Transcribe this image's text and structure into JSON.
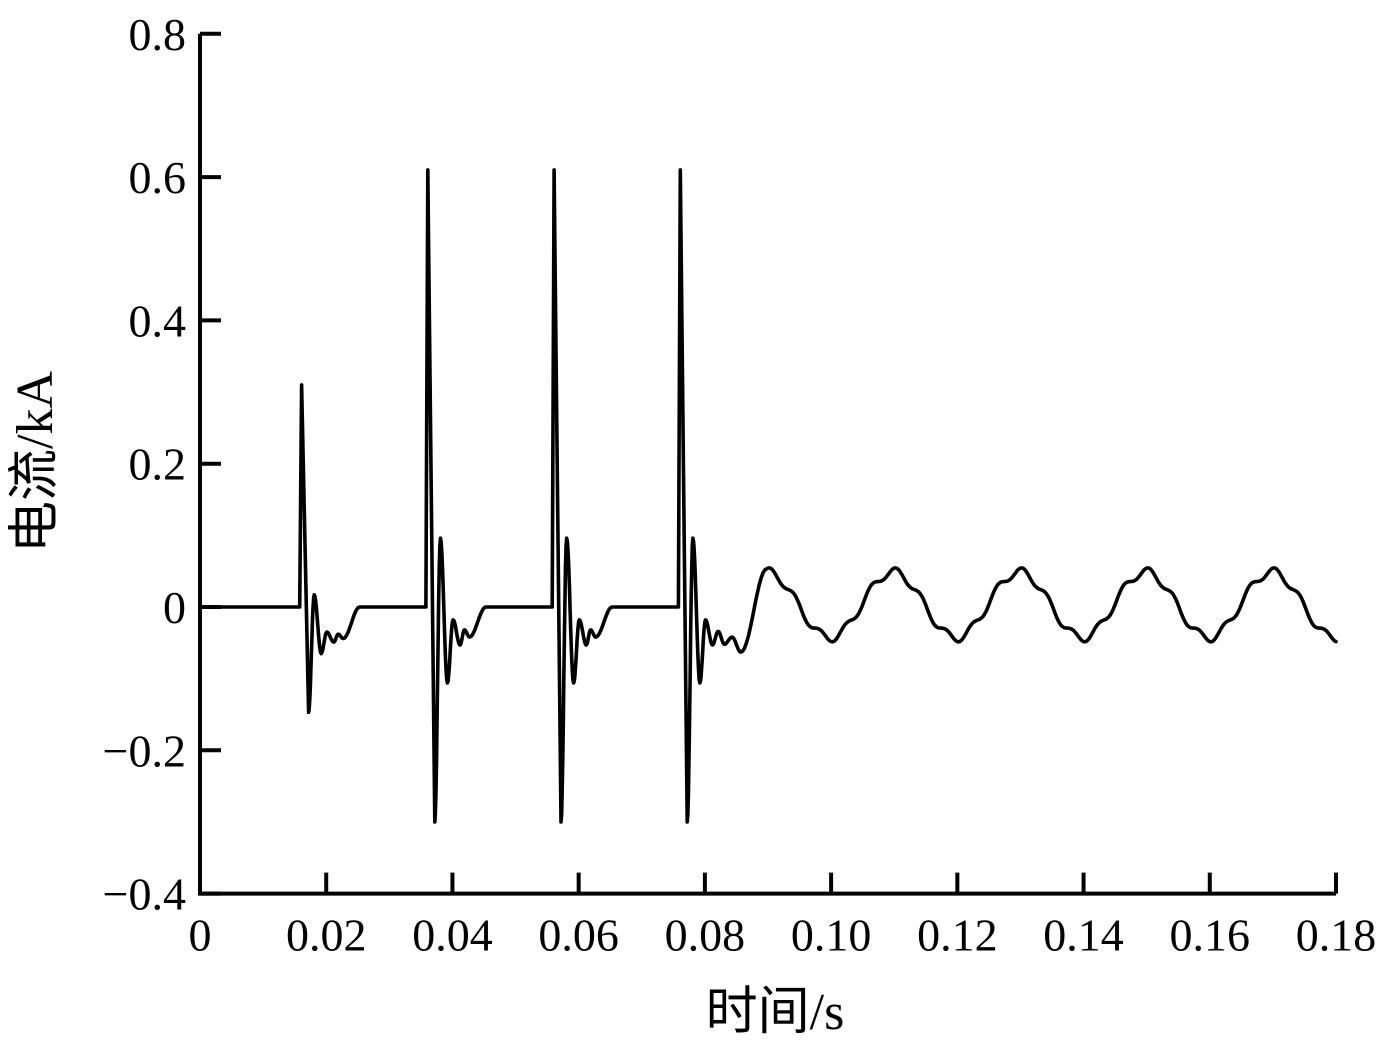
{
  "figure": {
    "background": "#ffffff",
    "ink_color": "#000000"
  },
  "chart_data": {
    "type": "line",
    "title": "",
    "xlabel": "时间/s",
    "ylabel": "电流/kA",
    "xlim": [
      0,
      0.18
    ],
    "ylim": [
      -0.4,
      0.8
    ],
    "grid": false,
    "legend": null,
    "line_color": "#000000",
    "xticks": [
      0,
      0.02,
      0.04,
      0.06,
      0.08,
      0.1,
      0.12,
      0.14,
      0.16,
      0.18
    ],
    "xtick_labels": [
      "0",
      "0.02",
      "0.04",
      "0.06",
      "0.08",
      "0.10",
      "0.12",
      "0.14",
      "0.16",
      "0.18"
    ],
    "yticks": [
      0.8,
      0.6,
      0.4,
      0.2,
      0,
      -0.2,
      -0.4
    ],
    "ytick_labels": [
      "0.8",
      "0.6",
      "0.4",
      "0.2",
      "0",
      "−0.2",
      "−0.4"
    ],
    "baseline_kA": 0,
    "pulses": [
      {
        "onset_s": 0.0158,
        "peak_kA": 0.31,
        "min_kA": -0.147,
        "keypoints": [
          [
            0,
            0
          ],
          [
            0.0003,
            0.31
          ],
          [
            0.0014,
            -0.147
          ],
          [
            0.0023,
            0.017
          ],
          [
            0.0034,
            -0.065
          ],
          [
            0.0043,
            -0.035
          ],
          [
            0.0054,
            -0.049
          ],
          [
            0.0061,
            -0.038
          ],
          [
            0.0069,
            -0.044
          ],
          [
            0.0095,
            0
          ]
        ]
      },
      {
        "onset_s": 0.0358,
        "peak_kA": 0.61,
        "min_kA": -0.3,
        "keypoints": [
          [
            0,
            0
          ],
          [
            0.0003,
            0.61
          ],
          [
            0.0014,
            -0.3
          ],
          [
            0.0023,
            0.096
          ],
          [
            0.0034,
            -0.106
          ],
          [
            0.0043,
            -0.018
          ],
          [
            0.0054,
            -0.053
          ],
          [
            0.0061,
            -0.032
          ],
          [
            0.0069,
            -0.042
          ],
          [
            0.0095,
            0
          ]
        ]
      },
      {
        "onset_s": 0.0558,
        "peak_kA": 0.61,
        "min_kA": -0.3,
        "keypoints": [
          [
            0,
            0
          ],
          [
            0.0003,
            0.61
          ],
          [
            0.0014,
            -0.3
          ],
          [
            0.0023,
            0.096
          ],
          [
            0.0034,
            -0.106
          ],
          [
            0.0043,
            -0.018
          ],
          [
            0.0054,
            -0.053
          ],
          [
            0.0061,
            -0.032
          ],
          [
            0.0069,
            -0.042
          ],
          [
            0.0095,
            0
          ]
        ]
      },
      {
        "onset_s": 0.0758,
        "peak_kA": 0.61,
        "min_kA": -0.3,
        "keypoints": [
          [
            0,
            0
          ],
          [
            0.0003,
            0.61
          ],
          [
            0.0014,
            -0.3
          ],
          [
            0.0023,
            0.096
          ],
          [
            0.0034,
            -0.106
          ],
          [
            0.0043,
            -0.018
          ],
          [
            0.0054,
            -0.053
          ],
          [
            0.0063,
            -0.034
          ],
          [
            0.0073,
            -0.052
          ],
          [
            0.0085,
            -0.042
          ],
          [
            0.0099,
            -0.063
          ]
        ]
      }
    ],
    "steady_state": {
      "first_peak_s": 0.0898,
      "end_s": 0.18,
      "mean_kA": 0.003,
      "amplitude_kA": 0.046,
      "frequency_hz": 50,
      "ripple_amplitude_kA": 0.006,
      "ripple_frequency_hz": 250,
      "ripple_phase_rad": 0.8
    }
  }
}
